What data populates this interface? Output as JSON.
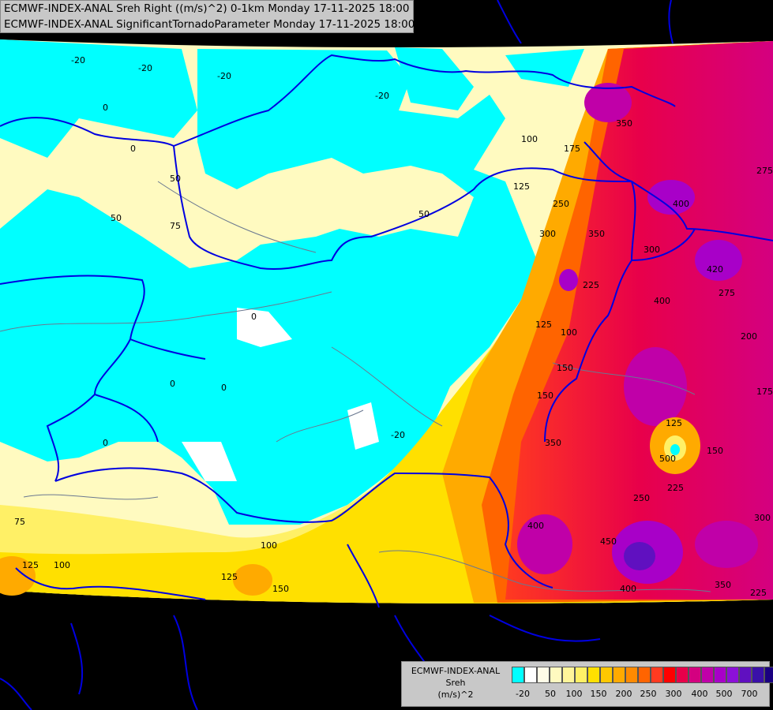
{
  "header": {
    "line1": "ECMWF-INDEX-ANAL Sreh Right ((m/s)^2) 0-1km Monday 17-11-2025 18:00",
    "line2": "ECMWF-INDEX-ANAL SignificantTornadoParameter Monday 17-11-2025 18:00"
  },
  "legend": {
    "title_lines": [
      "ECMWF-INDEX-ANAL",
      "Sreh",
      "(m/s)^2"
    ],
    "colors": [
      "#00ffff",
      "#ffffff",
      "#fffce8",
      "#fffac0",
      "#fff59a",
      "#fff066",
      "#ffe000",
      "#ffc800",
      "#ffaa00",
      "#ff8a00",
      "#ff6400",
      "#ff3a20",
      "#ff0000",
      "#e8004a",
      "#d40080",
      "#c000a8",
      "#a800c8",
      "#8c10d8",
      "#6010c0",
      "#3a10a8",
      "#1a0080",
      "#000060"
    ],
    "ticks": [
      "-20",
      "50",
      "100",
      "150",
      "200",
      "250",
      "300",
      "400",
      "500",
      "700"
    ]
  },
  "map_labels": {
    "contours": [
      "-20",
      "-20",
      "-20",
      "-20",
      "-20",
      "0",
      "0",
      "0",
      "0",
      "0",
      "50",
      "50",
      "50",
      "75",
      "75",
      "100",
      "100",
      "100",
      "100",
      "125",
      "125",
      "125",
      "125",
      "125",
      "150",
      "150",
      "150",
      "150",
      "175",
      "175",
      "200",
      "225",
      "225",
      "225",
      "250",
      "250",
      "275",
      "275",
      "300",
      "300",
      "300",
      "350",
      "350",
      "350",
      "350",
      "400",
      "400",
      "400",
      "400",
      "420",
      "450",
      "500",
      "0"
    ]
  },
  "icons": [
    "ecmwf-map",
    "country-border-lines",
    "river-lines"
  ]
}
